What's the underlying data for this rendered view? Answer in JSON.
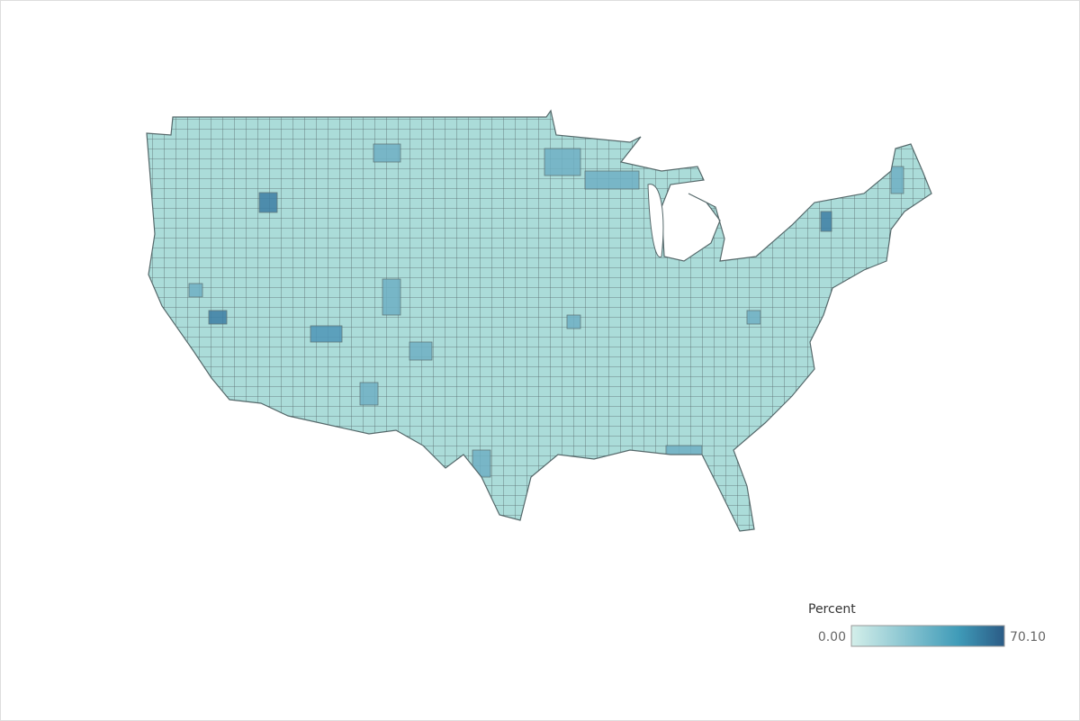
{
  "legend": {
    "title": "Percent",
    "min_label": "0.00",
    "max_label": "70.10",
    "colors": [
      "#d4efea",
      "#2b5b86"
    ]
  }
}
